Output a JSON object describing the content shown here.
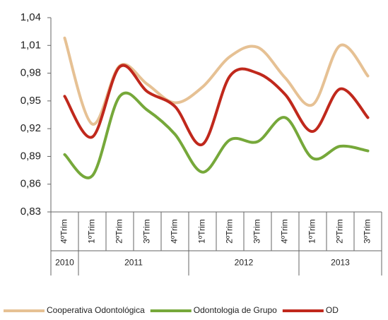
{
  "chart_data": {
    "type": "line",
    "categories": [
      "4ºTrim",
      "1ºTrim",
      "2ºTrim",
      "3ºTrim",
      "4ºTrim",
      "1ºTrim",
      "2ºTrim",
      "3ºTrim",
      "4ºTrim",
      "1ºTrim",
      "2ºTrim",
      "3ºTrim"
    ],
    "year_labels": [
      "2010",
      "2011",
      null,
      null,
      null,
      "2012",
      null,
      null,
      null,
      "2013",
      null,
      null
    ],
    "series": [
      {
        "name": "Cooperativa Odontológica",
        "color": "#e6c194",
        "values": [
          1.018,
          0.925,
          0.988,
          0.968,
          0.948,
          0.965,
          0.998,
          1.008,
          0.975,
          0.946,
          1.01,
          0.977
        ]
      },
      {
        "name": "Odontologia de Grupo",
        "color": "#76a83a",
        "values": [
          0.892,
          0.869,
          0.955,
          0.94,
          0.914,
          0.873,
          0.908,
          0.906,
          0.932,
          0.888,
          0.901,
          0.896
        ]
      },
      {
        "name": "OD",
        "color": "#c0281c",
        "values": [
          0.955,
          0.911,
          0.987,
          0.96,
          0.944,
          0.903,
          0.977,
          0.98,
          0.957,
          0.917,
          0.963,
          0.932
        ]
      }
    ],
    "ylim": [
      0.83,
      1.04
    ],
    "yticks": [
      {
        "value": 0.83,
        "label": "0,83"
      },
      {
        "value": 0.86,
        "label": "0,86"
      },
      {
        "value": 0.89,
        "label": "0,89"
      },
      {
        "value": 0.92,
        "label": "0,92"
      },
      {
        "value": 0.95,
        "label": "0,95"
      },
      {
        "value": 0.98,
        "label": "0,98"
      },
      {
        "value": 1.01,
        "label": "1,01"
      },
      {
        "value": 1.04,
        "label": "1,04"
      }
    ],
    "smooth": true,
    "legend": "bottom"
  }
}
